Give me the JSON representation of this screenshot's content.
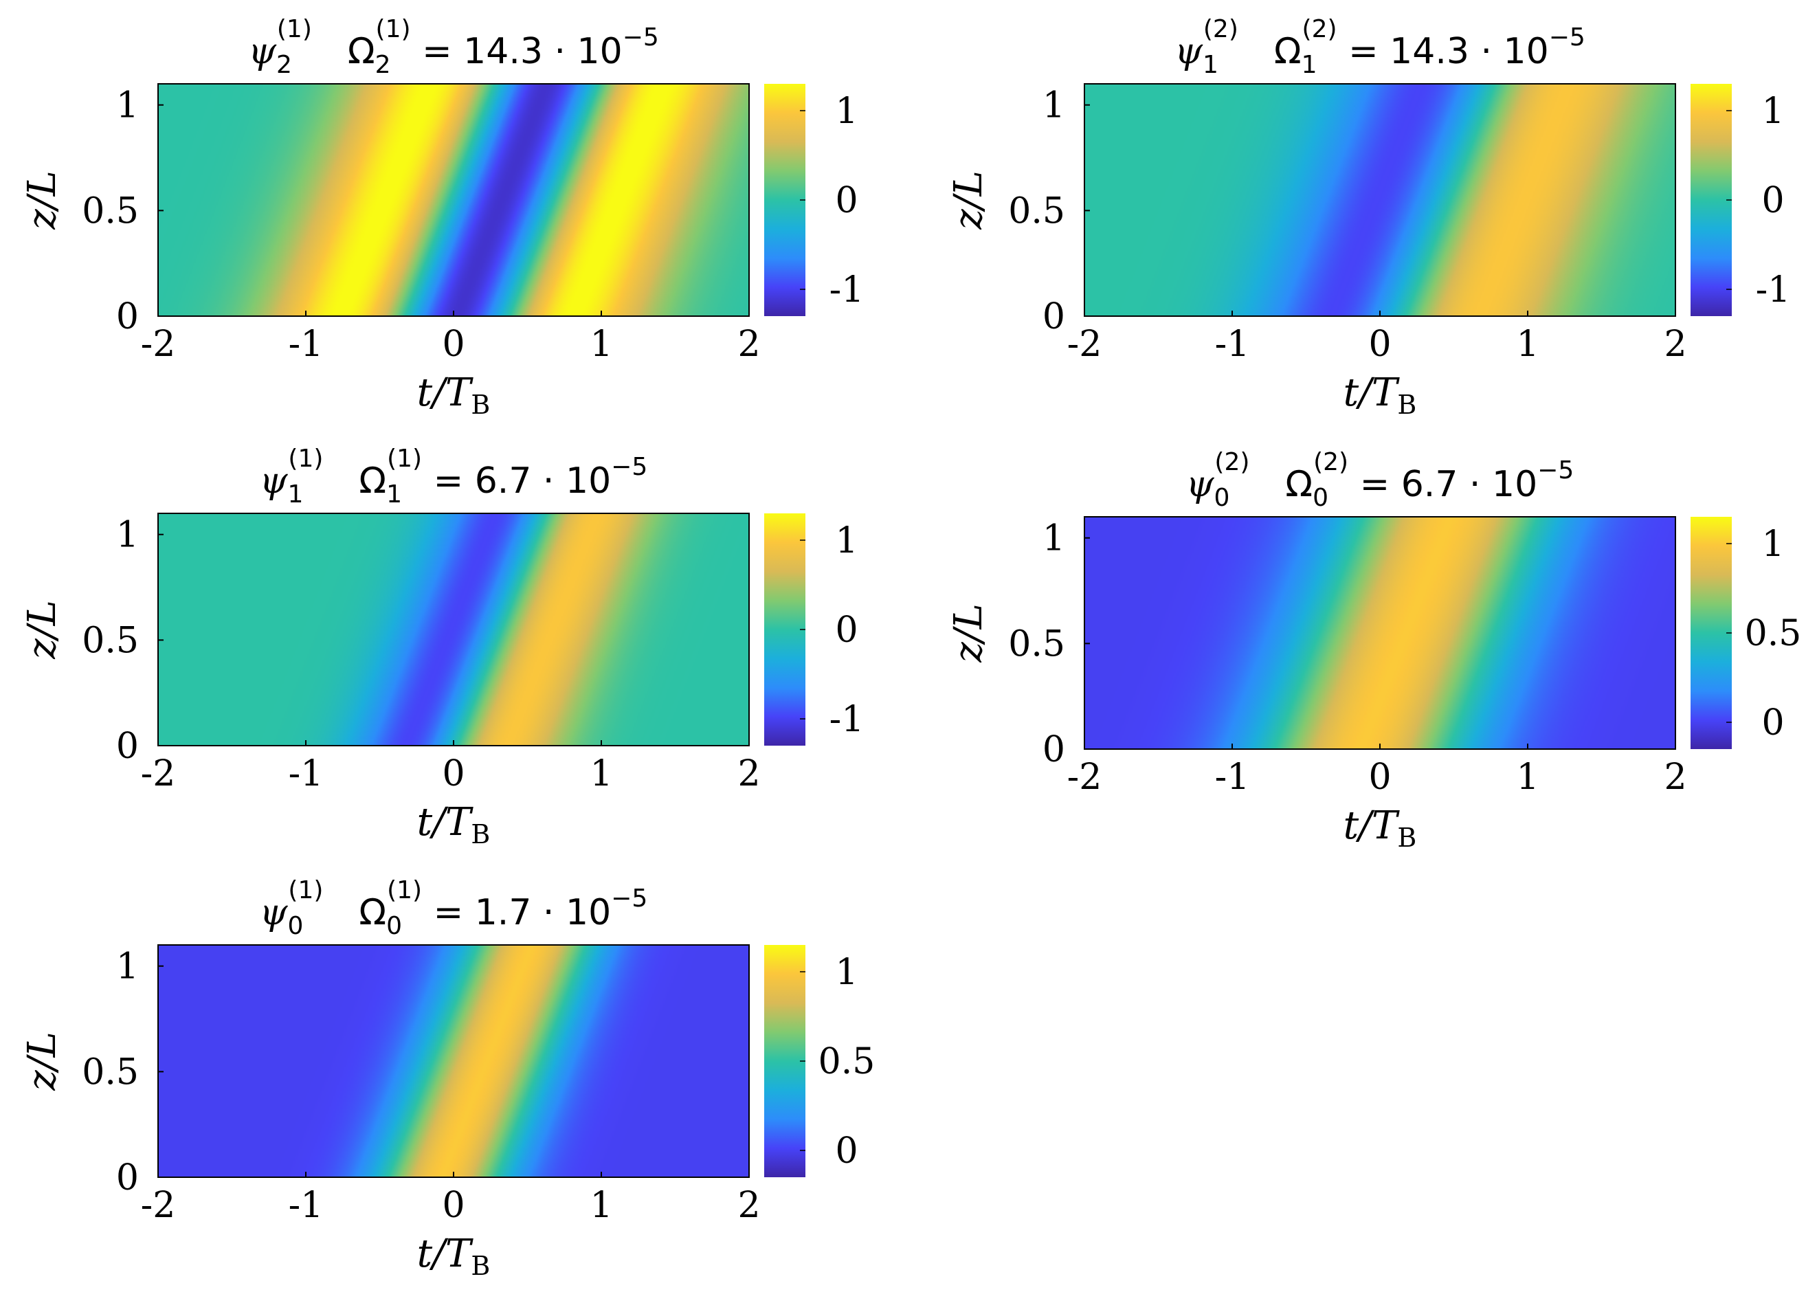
{
  "figure": {
    "colormap": [
      "#3e26a8",
      "#4743f8",
      "#2d8dfa",
      "#1cafdc",
      "#2cc2a6",
      "#82ca70",
      "#d9ba56",
      "#fbc63c",
      "#f9fb14"
    ]
  },
  "chart_data": [
    {
      "type": "heatmap",
      "title": {
        "sym": "ψ",
        "sub": "2",
        "sup": "(1)",
        "omega_sub": "2",
        "omega_sup": "(1)",
        "value": "= 14.3 · 10",
        "exp": "−5"
      },
      "xlabel": "t/T",
      "xlabel_sub": "B",
      "ylabel": "z/L",
      "xlim": [
        -2,
        2
      ],
      "ylim": [
        0,
        1.1
      ],
      "xticks": [
        "-2",
        "-1",
        "0",
        "1",
        "2"
      ],
      "yticks": [
        "0",
        "0.5",
        "1"
      ],
      "colorbar": {
        "range": [
          -1.3,
          1.3
        ],
        "ticks": [
          "-1",
          "0",
          "1"
        ],
        "tick_values": [
          -1,
          0,
          1
        ]
      },
      "wave": {
        "mode": 2,
        "center": 0.3,
        "slope": 0.55,
        "width": 2.0
      }
    },
    {
      "type": "heatmap",
      "title": {
        "sym": "ψ",
        "sub": "1",
        "sup": "(2)",
        "omega_sub": "1",
        "omega_sup": "(2)",
        "value": "= 14.3 · 10",
        "exp": "−5"
      },
      "xlabel": "t/T",
      "xlabel_sub": "B",
      "ylabel": "z/L",
      "xlim": [
        -2,
        2
      ],
      "ylim": [
        0,
        1.1
      ],
      "xticks": [
        "-2",
        "-1",
        "0",
        "1",
        "2"
      ],
      "yticks": [
        "0",
        "0.5",
        "1"
      ],
      "colorbar": {
        "range": [
          -1.3,
          1.3
        ],
        "ticks": [
          "-1",
          "0",
          "1"
        ],
        "tick_values": [
          -1,
          0,
          1
        ]
      },
      "wave": {
        "mode": 1,
        "center": 0.45,
        "slope": 0.55,
        "width": 2.0
      }
    },
    {
      "type": "heatmap",
      "title": {
        "sym": "ψ",
        "sub": "1",
        "sup": "(1)",
        "omega_sub": "1",
        "omega_sup": "(1)",
        "value": "= 6.7 · 10",
        "exp": "−5"
      },
      "xlabel": "t/T",
      "xlabel_sub": "B",
      "ylabel": "z/L",
      "xlim": [
        -2,
        2
      ],
      "ylim": [
        0,
        1.1
      ],
      "xticks": [
        "-2",
        "-1",
        "0",
        "1",
        "2"
      ],
      "yticks": [
        "0",
        "0.5",
        "1"
      ],
      "colorbar": {
        "range": [
          -1.3,
          1.3
        ],
        "ticks": [
          "-1",
          "0",
          "1"
        ],
        "tick_values": [
          -1,
          0,
          1
        ]
      },
      "wave": {
        "mode": 1,
        "center": 0.3,
        "slope": 0.55,
        "width": 2.9
      }
    },
    {
      "type": "heatmap",
      "title": {
        "sym": "ψ",
        "sub": "0",
        "sup": "(2)",
        "omega_sub": "0",
        "omega_sup": "(2)",
        "value": "= 6.7 · 10",
        "exp": "−5"
      },
      "xlabel": "t/T",
      "xlabel_sub": "B",
      "ylabel": "z/L",
      "xlim": [
        -2,
        2
      ],
      "ylim": [
        0,
        1.1
      ],
      "xticks": [
        "-2",
        "-1",
        "0",
        "1",
        "2"
      ],
      "yticks": [
        "0",
        "0.5",
        "1"
      ],
      "colorbar": {
        "range": [
          -0.15,
          1.15
        ],
        "ticks": [
          "0",
          "0.5",
          "1"
        ],
        "tick_values": [
          0,
          0.5,
          1
        ]
      },
      "wave": {
        "mode": 0,
        "center": 0.15,
        "slope": 0.55,
        "width": 2.0
      }
    },
    {
      "type": "heatmap",
      "title": {
        "sym": "ψ",
        "sub": "0",
        "sup": "(1)",
        "omega_sub": "0",
        "omega_sup": "(1)",
        "value": "= 1.7 · 10",
        "exp": "−5"
      },
      "xlabel": "t/T",
      "xlabel_sub": "B",
      "ylabel": "z/L",
      "xlim": [
        -2,
        2
      ],
      "ylim": [
        0,
        1.1
      ],
      "xticks": [
        "-2",
        "-1",
        "0",
        "1",
        "2"
      ],
      "yticks": [
        "0",
        "0.5",
        "1"
      ],
      "colorbar": {
        "range": [
          -0.15,
          1.15
        ],
        "ticks": [
          "0",
          "0.5",
          "1"
        ],
        "tick_values": [
          0,
          0.5,
          1
        ]
      },
      "wave": {
        "mode": 0,
        "center": 0.2,
        "slope": 0.55,
        "width": 3.2
      }
    }
  ]
}
